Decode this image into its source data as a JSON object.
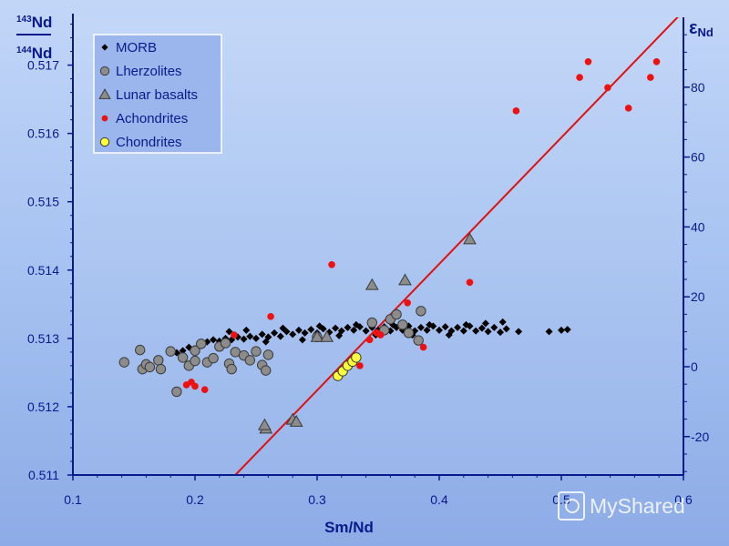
{
  "chart_data": {
    "type": "scatter",
    "title": "",
    "xlabel": "Sm/Nd",
    "ylabel": {
      "top_num": "143",
      "top_el": "Nd",
      "bot_num": "144",
      "bot_el": "Nd"
    },
    "y2label": {
      "eps": "ε",
      "sub": "Nd"
    },
    "xlim": [
      0.1,
      0.6
    ],
    "ylim": [
      0.511,
      0.5177
    ],
    "y2lim": [
      -31,
      100
    ],
    "xticks": [
      0.1,
      0.2,
      0.3,
      0.4,
      0.5,
      0.6
    ],
    "xtick_labels": [
      "0.1",
      "0.2",
      "0.3",
      "0.4",
      "0.5",
      "0.6"
    ],
    "yticks": [
      0.511,
      0.512,
      0.513,
      0.514,
      0.515,
      0.516,
      0.517
    ],
    "ytick_labels": [
      "0.511",
      "0.512",
      "0.513",
      "0.514",
      "0.515",
      "0.516",
      "0.517"
    ],
    "y2ticks": [
      -20,
      0,
      20,
      40,
      60,
      80
    ],
    "y2tick_labels": [
      "-20",
      "0",
      "20",
      "40",
      "60",
      "80"
    ],
    "legend_position": "top-left",
    "reference_line": {
      "color": "#e01010",
      "points": [
        [
          0.233,
          0.511
        ],
        [
          0.6,
          0.51779
        ]
      ]
    },
    "series": [
      {
        "name": "MORB",
        "marker": "diamond",
        "color": "#000000",
        "points": [
          [
            0.185,
            0.51279
          ],
          [
            0.19,
            0.51282
          ],
          [
            0.195,
            0.51287
          ],
          [
            0.2,
            0.51285
          ],
          [
            0.205,
            0.5129
          ],
          [
            0.21,
            0.51295
          ],
          [
            0.215,
            0.51298
          ],
          [
            0.22,
            0.51296
          ],
          [
            0.225,
            0.513
          ],
          [
            0.23,
            0.51298
          ],
          [
            0.235,
            0.51302
          ],
          [
            0.24,
            0.51299
          ],
          [
            0.245,
            0.51303
          ],
          [
            0.25,
            0.513
          ],
          [
            0.255,
            0.51306
          ],
          [
            0.26,
            0.51302
          ],
          [
            0.265,
            0.51308
          ],
          [
            0.27,
            0.51303
          ],
          [
            0.275,
            0.5131
          ],
          [
            0.28,
            0.51306
          ],
          [
            0.285,
            0.51312
          ],
          [
            0.29,
            0.51308
          ],
          [
            0.295,
            0.51313
          ],
          [
            0.3,
            0.51308
          ],
          [
            0.305,
            0.51314
          ],
          [
            0.31,
            0.51309
          ],
          [
            0.315,
            0.51315
          ],
          [
            0.32,
            0.51311
          ],
          [
            0.325,
            0.51316
          ],
          [
            0.33,
            0.51312
          ],
          [
            0.335,
            0.51317
          ],
          [
            0.34,
            0.51311
          ],
          [
            0.345,
            0.51316
          ],
          [
            0.35,
            0.51312
          ],
          [
            0.355,
            0.51317
          ],
          [
            0.36,
            0.51311
          ],
          [
            0.365,
            0.51316
          ],
          [
            0.37,
            0.51312
          ],
          [
            0.375,
            0.51318
          ],
          [
            0.38,
            0.51311
          ],
          [
            0.385,
            0.51316
          ],
          [
            0.39,
            0.51312
          ],
          [
            0.395,
            0.51318
          ],
          [
            0.4,
            0.51312
          ],
          [
            0.405,
            0.51317
          ],
          [
            0.41,
            0.51311
          ],
          [
            0.415,
            0.51316
          ],
          [
            0.42,
            0.51311
          ],
          [
            0.425,
            0.51318
          ],
          [
            0.43,
            0.51311
          ],
          [
            0.435,
            0.51315
          ],
          [
            0.44,
            0.5131
          ],
          [
            0.445,
            0.51316
          ],
          [
            0.45,
            0.51309
          ],
          [
            0.455,
            0.51314
          ],
          [
            0.465,
            0.5131
          ],
          [
            0.49,
            0.5131
          ],
          [
            0.5,
            0.51312
          ],
          [
            0.505,
            0.51313
          ],
          [
            0.228,
            0.5131
          ],
          [
            0.242,
            0.51312
          ],
          [
            0.258,
            0.51295
          ],
          [
            0.272,
            0.51315
          ],
          [
            0.288,
            0.51298
          ],
          [
            0.302,
            0.51318
          ],
          [
            0.318,
            0.51304
          ],
          [
            0.332,
            0.5132
          ],
          [
            0.348,
            0.51305
          ],
          [
            0.362,
            0.5132
          ],
          [
            0.378,
            0.51305
          ],
          [
            0.392,
            0.5132
          ],
          [
            0.408,
            0.51305
          ],
          [
            0.422,
            0.5132
          ],
          [
            0.438,
            0.51322
          ],
          [
            0.452,
            0.51324
          ]
        ]
      },
      {
        "name": "Lherzolites",
        "marker": "circle",
        "color": "#8c8c8c",
        "points": [
          [
            0.142,
            0.51265
          ],
          [
            0.155,
            0.51283
          ],
          [
            0.157,
            0.51255
          ],
          [
            0.16,
            0.51262
          ],
          [
            0.163,
            0.51258
          ],
          [
            0.17,
            0.51268
          ],
          [
            0.172,
            0.51255
          ],
          [
            0.18,
            0.51281
          ],
          [
            0.185,
            0.51222
          ],
          [
            0.19,
            0.51272
          ],
          [
            0.195,
            0.5126
          ],
          [
            0.2,
            0.51267
          ],
          [
            0.2,
            0.51282
          ],
          [
            0.205,
            0.51292
          ],
          [
            0.21,
            0.51265
          ],
          [
            0.215,
            0.51271
          ],
          [
            0.22,
            0.51288
          ],
          [
            0.225,
            0.51293
          ],
          [
            0.228,
            0.51263
          ],
          [
            0.23,
            0.51255
          ],
          [
            0.233,
            0.5128
          ],
          [
            0.24,
            0.51275
          ],
          [
            0.245,
            0.51268
          ],
          [
            0.25,
            0.51281
          ],
          [
            0.255,
            0.51261
          ],
          [
            0.258,
            0.51253
          ],
          [
            0.26,
            0.51276
          ],
          [
            0.3,
            0.51302
          ],
          [
            0.345,
            0.51323
          ],
          [
            0.355,
            0.51312
          ],
          [
            0.36,
            0.51328
          ],
          [
            0.365,
            0.51335
          ],
          [
            0.37,
            0.5132
          ],
          [
            0.375,
            0.51308
          ],
          [
            0.383,
            0.51297
          ],
          [
            0.385,
            0.5134
          ]
        ]
      },
      {
        "name": "Lunar basalts",
        "marker": "triangle",
        "color": "#8c8c8c",
        "points": [
          [
            0.258,
            0.51168
          ],
          [
            0.257,
            0.51173
          ],
          [
            0.28,
            0.51181
          ],
          [
            0.283,
            0.51178
          ],
          [
            0.3,
            0.51302
          ],
          [
            0.308,
            0.51302
          ],
          [
            0.345,
            0.51378
          ],
          [
            0.372,
            0.51385
          ],
          [
            0.425,
            0.51445
          ]
        ]
      },
      {
        "name": "Achondrites",
        "marker": "dot",
        "color": "#ee1111",
        "points": [
          [
            0.193,
            0.51232
          ],
          [
            0.197,
            0.51236
          ],
          [
            0.2,
            0.5123
          ],
          [
            0.208,
            0.51225
          ],
          [
            0.232,
            0.51305
          ],
          [
            0.262,
            0.51332
          ],
          [
            0.312,
            0.51408
          ],
          [
            0.335,
            0.5126
          ],
          [
            0.343,
            0.51298
          ],
          [
            0.349,
            0.51308
          ],
          [
            0.352,
            0.51305
          ],
          [
            0.374,
            0.51352
          ],
          [
            0.387,
            0.51287
          ],
          [
            0.425,
            0.51382
          ],
          [
            0.463,
            0.51633
          ],
          [
            0.515,
            0.51682
          ],
          [
            0.522,
            0.51705
          ],
          [
            0.538,
            0.51667
          ],
          [
            0.555,
            0.51637
          ],
          [
            0.573,
            0.51682
          ],
          [
            0.578,
            0.51705
          ]
        ]
      },
      {
        "name": "Chondrites",
        "marker": "circle",
        "color": "#ffff3a",
        "points": [
          [
            0.317,
            0.51245
          ],
          [
            0.321,
            0.51252
          ],
          [
            0.325,
            0.5126
          ],
          [
            0.329,
            0.51266
          ],
          [
            0.332,
            0.51272
          ]
        ]
      }
    ]
  },
  "watermark": {
    "text": "MyShared"
  }
}
